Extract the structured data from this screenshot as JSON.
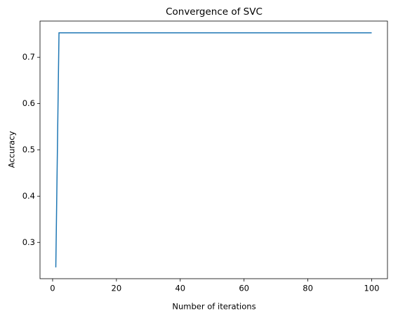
{
  "chart_data": {
    "type": "line",
    "title": "Convergence of SVC",
    "x_label": "Number of iterations",
    "y_label": "Accuracy",
    "color": "#1f77b4",
    "x": [
      1,
      2,
      3,
      4,
      5,
      6,
      7,
      8,
      9,
      10,
      11,
      12,
      13,
      14,
      15,
      16,
      17,
      18,
      19,
      20,
      21,
      22,
      23,
      24,
      25,
      26,
      27,
      28,
      29,
      30,
      31,
      32,
      33,
      34,
      35,
      36,
      37,
      38,
      39,
      40,
      41,
      42,
      43,
      44,
      45,
      46,
      47,
      48,
      49,
      50,
      51,
      52,
      53,
      54,
      55,
      56,
      57,
      58,
      59,
      60,
      61,
      62,
      63,
      64,
      65,
      66,
      67,
      68,
      69,
      70,
      71,
      72,
      73,
      74,
      75,
      76,
      77,
      78,
      79,
      80,
      81,
      82,
      83,
      84,
      85,
      86,
      87,
      88,
      89,
      90,
      91,
      92,
      93,
      94,
      95,
      96,
      97,
      98,
      99,
      100
    ],
    "values": [
      0.246,
      0.753,
      0.753,
      0.753,
      0.753,
      0.753,
      0.753,
      0.753,
      0.753,
      0.753,
      0.753,
      0.753,
      0.753,
      0.753,
      0.753,
      0.753,
      0.753,
      0.753,
      0.753,
      0.753,
      0.753,
      0.753,
      0.753,
      0.753,
      0.753,
      0.753,
      0.753,
      0.753,
      0.753,
      0.753,
      0.753,
      0.753,
      0.753,
      0.753,
      0.753,
      0.753,
      0.753,
      0.753,
      0.753,
      0.753,
      0.753,
      0.753,
      0.753,
      0.753,
      0.753,
      0.753,
      0.753,
      0.753,
      0.753,
      0.753,
      0.753,
      0.753,
      0.753,
      0.753,
      0.753,
      0.753,
      0.753,
      0.753,
      0.753,
      0.753,
      0.753,
      0.753,
      0.753,
      0.753,
      0.753,
      0.753,
      0.753,
      0.753,
      0.753,
      0.753,
      0.753,
      0.753,
      0.753,
      0.753,
      0.753,
      0.753,
      0.753,
      0.753,
      0.753,
      0.753,
      0.753,
      0.753,
      0.753,
      0.753,
      0.753,
      0.753,
      0.753,
      0.753,
      0.753,
      0.753,
      0.753,
      0.753,
      0.753,
      0.753,
      0.753,
      0.753,
      0.753,
      0.753,
      0.753,
      0.753
    ],
    "xlim": [
      -3.95,
      104.95
    ],
    "xticks": [
      0,
      20,
      40,
      60,
      80,
      100
    ],
    "ylim": [
      0.2215,
      0.7785
    ],
    "yticks": [
      0.3,
      0.4,
      0.5,
      0.6,
      0.7
    ]
  }
}
